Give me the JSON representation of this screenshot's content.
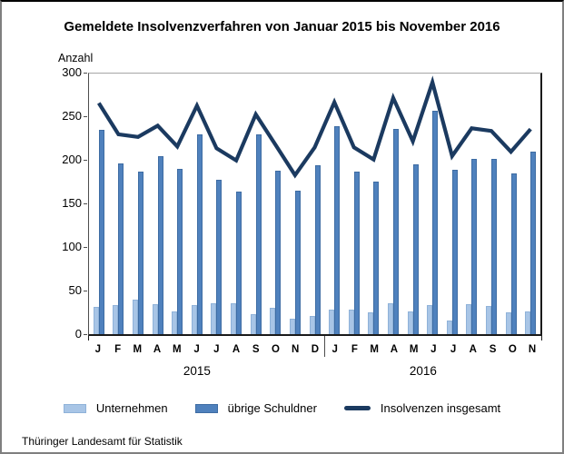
{
  "header": {
    "title": "Gemeldete Insolvenzverfahren von Januar 2015 bis November 2016"
  },
  "chart_data": {
    "type": "bar",
    "title": "Gemeldete Insolvenzverfahren von Januar 2015 bis November 2016",
    "ylabel": "Anzahl",
    "xlabel": "",
    "ylim": [
      0,
      300
    ],
    "ytick_step": 50,
    "grid": false,
    "legend_position": "bottom",
    "categories": [
      "J",
      "F",
      "M",
      "A",
      "M",
      "J",
      "J",
      "A",
      "S",
      "O",
      "N",
      "D",
      "J",
      "F",
      "M",
      "A",
      "M",
      "J",
      "J",
      "A",
      "S",
      "O",
      "N"
    ],
    "year_groups": [
      {
        "label": "2015",
        "span": 12
      },
      {
        "label": "2016",
        "span": 11
      }
    ],
    "series": [
      {
        "name": "Unternehmen",
        "type": "bar",
        "color": "#a8c5e6",
        "border_color": "#8fb2d9",
        "values": [
          31,
          33,
          40,
          35,
          26,
          33,
          36,
          36,
          23,
          30,
          18,
          21,
          28,
          28,
          25,
          36,
          26,
          33,
          16,
          35,
          32,
          25,
          26
        ]
      },
      {
        "name": "übrige Schuldner",
        "type": "bar",
        "color": "#4f81bd",
        "border_color": "#3e6ca3",
        "values": [
          235,
          197,
          187,
          205,
          190,
          230,
          178,
          164,
          230,
          188,
          165,
          194,
          239,
          187,
          176,
          236,
          196,
          257,
          189,
          202,
          202,
          185,
          210
        ]
      },
      {
        "name": "Insolvenzen insgesamt",
        "type": "line",
        "color": "#1b3a60",
        "line_width": 4.2,
        "values": [
          266,
          230,
          227,
          240,
          216,
          263,
          214,
          200,
          253,
          218,
          183,
          215,
          267,
          215,
          201,
          272,
          222,
          290,
          205,
          237,
          234,
          210,
          236
        ]
      }
    ]
  },
  "legend": {
    "items": [
      {
        "label": "Unternehmen",
        "swatch": "rect",
        "series_index": 0
      },
      {
        "label": "übrige Schuldner",
        "swatch": "rect",
        "series_index": 1
      },
      {
        "label": "Insolvenzen insgesamt",
        "swatch": "line",
        "series_index": 2
      }
    ]
  },
  "footer": {
    "source": "Thüringer Landesamt für Statistik"
  }
}
